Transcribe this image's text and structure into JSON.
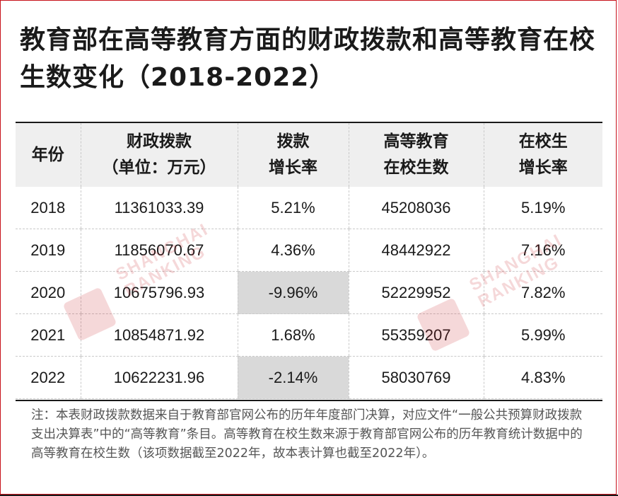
{
  "title": "教育部在高等教育方面的财政拨款和高等教育在校生数变化（2018-2022）",
  "table": {
    "headers": [
      {
        "line1": "年份",
        "line2": ""
      },
      {
        "line1": "财政拨款",
        "line2": "（单位：万元）"
      },
      {
        "line1": "拨款",
        "line2": "增长率"
      },
      {
        "line1": "高等教育",
        "line2": "在校生数"
      },
      {
        "line1": "在校生",
        "line2": "增长率"
      }
    ],
    "rows": [
      {
        "year": "2018",
        "funding": "11361033.39",
        "funding_growth": "5.21%",
        "students": "45208036",
        "student_growth": "5.19%"
      },
      {
        "year": "2019",
        "funding": "11856070.67",
        "funding_growth": "4.36%",
        "students": "48442922",
        "student_growth": "7.16%"
      },
      {
        "year": "2020",
        "funding": "10675796.93",
        "funding_growth": "-9.96%",
        "students": "52229952",
        "student_growth": "7.82%"
      },
      {
        "year": "2021",
        "funding": "10854871.92",
        "funding_growth": "1.68%",
        "students": "55359207",
        "student_growth": "5.99%"
      },
      {
        "year": "2022",
        "funding": "10622231.96",
        "funding_growth": "-2.14%",
        "students": "58030769",
        "student_growth": "4.83%"
      }
    ]
  },
  "note": "注：本表财政拨款数据来自于教育部官网公布的历年年度部门决算，对应文件“一般公共预算财政拨款支出决算表”中的“高等教育”条目。高等教育在校生数来源于教育部官网公布的历年教育统计数据中的高等教育在校生数（该项数据截至2022年，故本表计算也截至2022年）。",
  "watermark": {
    "text": "SHANGHAI RANKING",
    "logo_icon": "ranking-logo-icon",
    "color": "#c8121b"
  },
  "colors": {
    "brand_red": "#c8121b",
    "highlight_gray": "#d9d9d9",
    "header_bg": "#efefef"
  }
}
